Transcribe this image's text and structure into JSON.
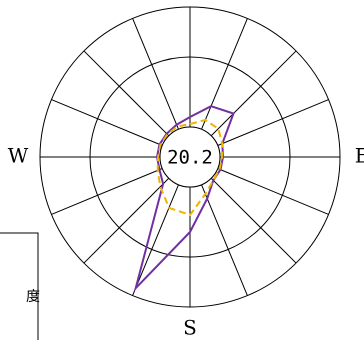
{
  "chart_data": {
    "type": "windrose",
    "center_label": "20.2",
    "directions": [
      null,
      null,
      null,
      null,
      "E",
      null,
      null,
      null,
      "S",
      null,
      null,
      null,
      "W",
      null,
      null,
      null
    ],
    "rlim": [
      0,
      120
    ],
    "rticks": [
      0,
      70,
      120
    ],
    "series": [
      {
        "name": null,
        "color": "#7030a0",
        "dashed": false,
        "values": [
          10,
          25,
          31.5,
          5,
          3,
          3,
          3,
          15,
          45,
          112,
          8,
          3,
          3,
          3,
          3,
          5
        ]
      },
      {
        "name": null,
        "color": "#f0b400",
        "dashed": true,
        "values": [
          3,
          10,
          10,
          5,
          2,
          2,
          3,
          10,
          28,
          25,
          12,
          5,
          2,
          2,
          2,
          3
        ]
      }
    ],
    "side_box_text": "度"
  }
}
